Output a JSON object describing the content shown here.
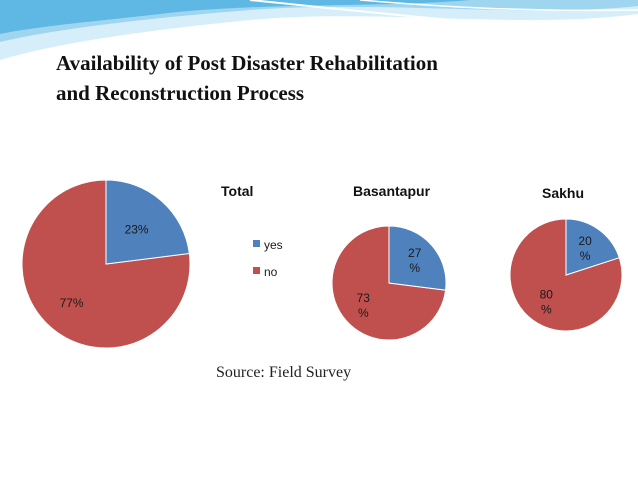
{
  "slide": {
    "title_line1": "Availability of Post Disaster Rehabilitation",
    "title_line2": "and Reconstruction Process",
    "source": "Source: Field Survey"
  },
  "colors": {
    "yes": "#4f81bd",
    "no": "#c0504d",
    "banner_light": "#d6eef9",
    "banner_mid": "#9fd5ef",
    "banner_dark": "#5fb8e3"
  },
  "legend": {
    "placement": "between first and second chart",
    "items": [
      {
        "key": "yes",
        "label": "yes"
      },
      {
        "key": "no",
        "label": "no"
      }
    ]
  },
  "chart_data": [
    {
      "type": "pie",
      "title": "Total",
      "slices": [
        {
          "key": "yes",
          "label": "yes",
          "value": 23,
          "display_lines": [
            "23%"
          ]
        },
        {
          "key": "no",
          "label": "no",
          "value": 77,
          "display_lines": [
            "77%"
          ]
        }
      ]
    },
    {
      "type": "pie",
      "title": "Basantapur",
      "slices": [
        {
          "key": "yes",
          "label": "yes",
          "value": 27,
          "display_lines": [
            "27",
            "%"
          ]
        },
        {
          "key": "no",
          "label": "no",
          "value": 73,
          "display_lines": [
            "73",
            "%"
          ]
        }
      ]
    },
    {
      "type": "pie",
      "title": "Sakhu",
      "slices": [
        {
          "key": "yes",
          "label": "yes",
          "value": 20,
          "display_lines": [
            "20",
            "%"
          ]
        },
        {
          "key": "no",
          "label": "no",
          "value": 80,
          "display_lines": [
            "80",
            "%"
          ]
        }
      ]
    }
  ]
}
